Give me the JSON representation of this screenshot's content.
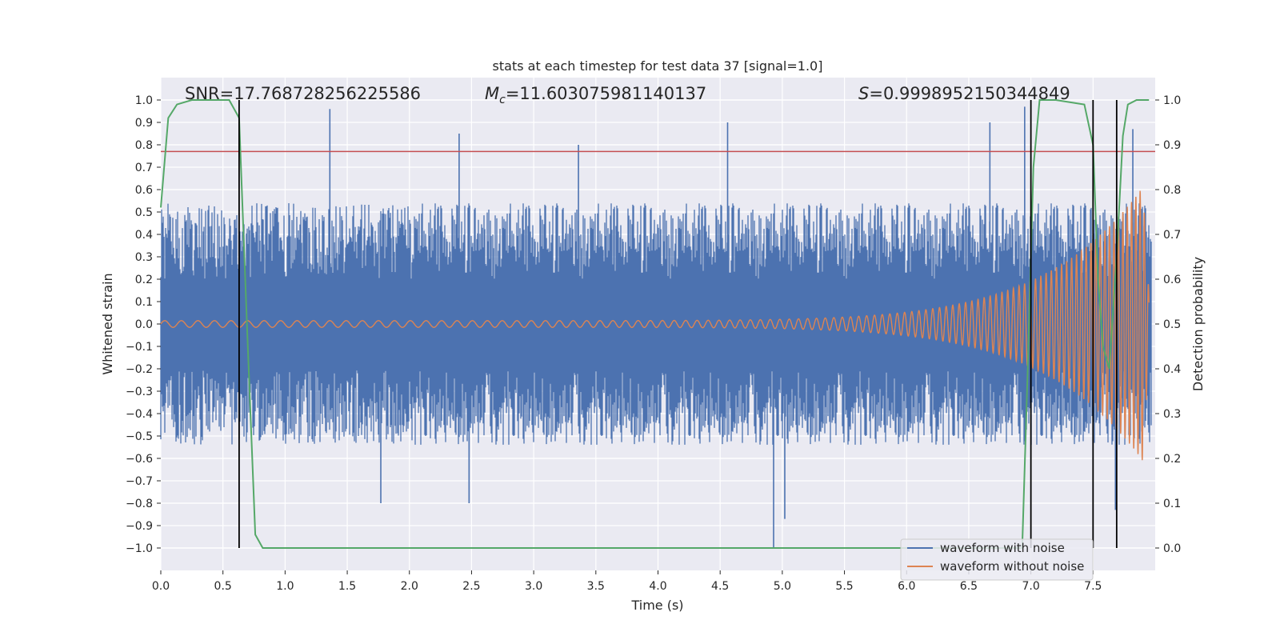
{
  "chart_data": {
    "type": "line",
    "title": "stats at each timestep for test data 37 [signal=1.0]",
    "xlabel": "Time (s)",
    "ylabel": "Whitened strain",
    "y2label": "Detection probability",
    "xlim": [
      0.0,
      8.0
    ],
    "ylim": [
      -1.1,
      1.1
    ],
    "y2lim": [
      -0.05,
      1.05
    ],
    "xticks": [
      0.0,
      0.5,
      1.0,
      1.5,
      2.0,
      2.5,
      3.0,
      3.5,
      4.0,
      4.5,
      5.0,
      5.5,
      6.0,
      6.5,
      7.0,
      7.5
    ],
    "yticks": [
      -1.0,
      -0.9,
      -0.8,
      -0.7,
      -0.6,
      -0.5,
      -0.4,
      -0.3,
      -0.2,
      -0.1,
      0.0,
      0.1,
      0.2,
      0.3,
      0.4,
      0.5,
      0.6,
      0.7,
      0.8,
      0.9,
      1.0
    ],
    "y2ticks": [
      0.0,
      0.1,
      0.2,
      0.3,
      0.4,
      0.5,
      0.6,
      0.7,
      0.8,
      0.9,
      1.0
    ],
    "grid": true,
    "legend_position": "bottom-right",
    "annotations": {
      "snr": "SNR=17.768728256225586",
      "mc_symbol": "M",
      "mc_sub": "c",
      "mc_value": "=11.603075981140137",
      "s_symbol": "S",
      "s_value": "=0.9998952150344849"
    },
    "series": [
      {
        "name": "waveform with noise",
        "color": "#4c72b0",
        "description_values": "noisy whitened strain, roughly within [-0.8, 0.95], occasional excursions to -1.0",
        "envelope": {
          "max": 0.95,
          "min": -1.0,
          "typical_pos": 0.45,
          "typical_neg": -0.45
        },
        "spikes": [
          {
            "x": 1.36,
            "y": 0.96
          },
          {
            "x": 2.4,
            "y": 0.85
          },
          {
            "x": 3.36,
            "y": 0.8
          },
          {
            "x": 4.56,
            "y": 0.9
          },
          {
            "x": 6.67,
            "y": 0.9
          },
          {
            "x": 6.95,
            "y": 0.97
          },
          {
            "x": 7.82,
            "y": 0.87
          },
          {
            "x": 4.93,
            "y": -1.0
          },
          {
            "x": 5.02,
            "y": -0.87
          },
          {
            "x": 1.77,
            "y": -0.8
          },
          {
            "x": 2.48,
            "y": -0.8
          },
          {
            "x": 7.68,
            "y": -0.83
          }
        ]
      },
      {
        "name": "waveform without noise",
        "color": "#dd8452",
        "description_values": "chirp signal; amplitude grows from ~0.015 at t=0 to ~0.65 near t=7.95",
        "amplitude_start": 0.015,
        "amplitude_end": 0.65,
        "freq_start_hz": 30,
        "freq_end_hz": 120,
        "t_end": 7.95
      },
      {
        "name": "detection probability",
        "color": "#55a868",
        "axis": "y2",
        "x": [
          0.0,
          0.06,
          0.13,
          0.25,
          0.4,
          0.55,
          0.63,
          0.7,
          0.76,
          0.82,
          1.0,
          2.0,
          3.0,
          4.0,
          5.0,
          6.0,
          6.93,
          6.98,
          7.02,
          7.07,
          7.2,
          7.43,
          7.5,
          7.54,
          7.58,
          7.63,
          7.69,
          7.74,
          7.78,
          7.85,
          7.95
        ],
        "y": [
          0.76,
          0.96,
          0.99,
          1.0,
          1.0,
          1.0,
          0.96,
          0.45,
          0.03,
          0.0,
          0.0,
          0.0,
          0.0,
          0.0,
          0.0,
          0.0,
          0.0,
          0.45,
          0.85,
          1.0,
          1.0,
          0.99,
          0.9,
          0.6,
          0.45,
          0.4,
          0.65,
          0.92,
          0.99,
          1.0,
          1.0
        ]
      }
    ],
    "threshold": {
      "color": "#c44e52",
      "y": 0.77
    },
    "vlines": {
      "color": "#000000",
      "x": [
        0.63,
        7.0,
        7.5,
        7.69
      ],
      "y_range": [
        -1.0,
        1.0
      ]
    }
  }
}
